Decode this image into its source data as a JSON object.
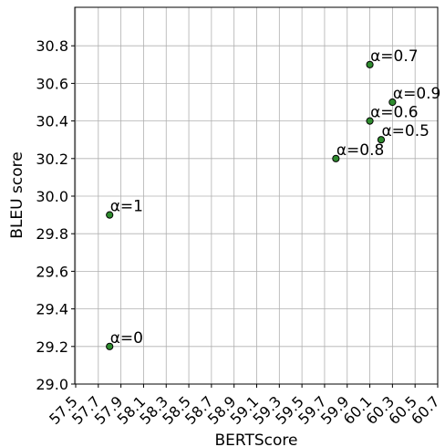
{
  "chart_data": {
    "type": "scatter",
    "title": "",
    "xlabel": "BERTScore",
    "ylabel": "BLEU score",
    "xlim": [
      57.5,
      60.7
    ],
    "ylim": [
      29.0,
      31.0
    ],
    "x_ticks": [
      "57.5",
      "57.7",
      "57.9",
      "58.1",
      "58.3",
      "58.5",
      "58.7",
      "58.9",
      "59.1",
      "59.3",
      "59.5",
      "59.7",
      "59.9",
      "60.1",
      "60.3",
      "60.5",
      "60.7"
    ],
    "y_ticks": [
      "29.0",
      "29.2",
      "29.4",
      "29.6",
      "29.8",
      "30.0",
      "30.2",
      "30.4",
      "30.6",
      "30.8"
    ],
    "grid": true,
    "marker_color": "#2e8b2e",
    "marker_edge_color": "#000000",
    "points": [
      {
        "label": "α=0",
        "x": 57.8,
        "y": 29.2
      },
      {
        "label": "α=1",
        "x": 57.8,
        "y": 29.9
      },
      {
        "label": "α=0.8",
        "x": 59.8,
        "y": 30.2
      },
      {
        "label": "α=0.5",
        "x": 60.2,
        "y": 30.3
      },
      {
        "label": "α=0.6",
        "x": 60.1,
        "y": 30.4
      },
      {
        "label": "α=0.9",
        "x": 60.3,
        "y": 30.5
      },
      {
        "label": "α=0.7",
        "x": 60.1,
        "y": 30.7
      }
    ]
  }
}
